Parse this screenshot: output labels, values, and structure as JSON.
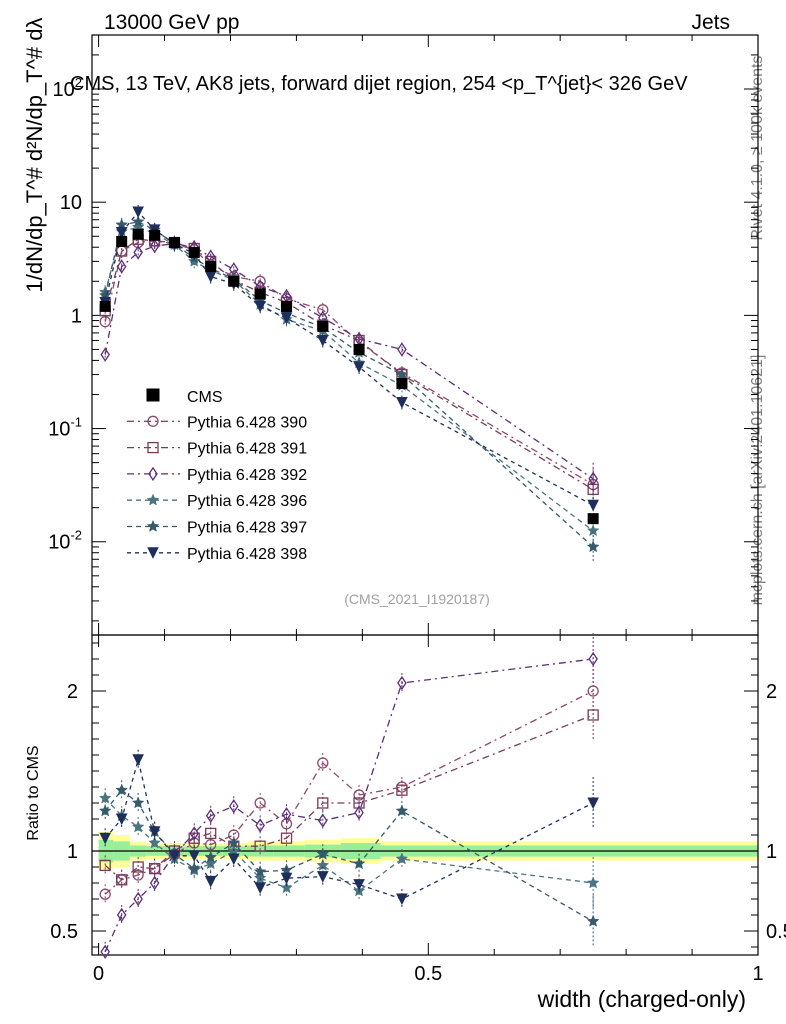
{
  "header": {
    "energy_label": "13000 GeV pp",
    "process_label": "Jets"
  },
  "side_labels": {
    "rivet": "Rivet 4.1.0, ≥ 100k events",
    "mcplots": "mcplots.cern.ch [arXiv:2401.10621]"
  },
  "chart_data": {
    "type": "line",
    "title": "CMS, 13 TeV, AK8 jets, forward dijet region, 254 <p_T^{jet}< 326 GeV",
    "analysis_id": "(CMS_2021_I1920187)",
    "xlabel": "width (charged-only)",
    "ylabel": "1/dN/dp_T^# d²N/dp_T^# dλ",
    "ratio_ylabel": "Ratio to CMS",
    "xlim": [
      -0.01,
      1.0
    ],
    "ylim": [
      0.0015,
      300
    ],
    "yscale": "log",
    "ratio_ylim": [
      0.35,
      2.35
    ],
    "x_ticks": [
      "0",
      "0.5",
      "1"
    ],
    "y_ticks": [
      "10^-2",
      "10^-1",
      "1",
      "10",
      "10^2"
    ],
    "ratio_ticks": [
      "0.5",
      "1",
      "2"
    ],
    "x": [
      0.01,
      0.035,
      0.06,
      0.085,
      0.115,
      0.145,
      0.17,
      0.205,
      0.245,
      0.285,
      0.34,
      0.395,
      0.46,
      0.75
    ],
    "data": {
      "name": "CMS",
      "values": [
        1.2,
        4.5,
        5.2,
        5.1,
        4.4,
        3.6,
        2.7,
        2.0,
        1.55,
        1.2,
        0.8,
        0.5,
        0.25,
        0.016
      ]
    },
    "band": {
      "yellow_rel": [
        0.12,
        0.1,
        0.06,
        0.05,
        0.05,
        0.05,
        0.05,
        0.05,
        0.06,
        0.06,
        0.07,
        0.08,
        0.06,
        0.06
      ],
      "green_rel": [
        0.07,
        0.06,
        0.035,
        0.03,
        0.03,
        0.03,
        0.03,
        0.03,
        0.035,
        0.035,
        0.04,
        0.05,
        0.035,
        0.035
      ]
    },
    "series": [
      {
        "name": "Pythia 6.428 390",
        "color": "#8b4a6b",
        "marker": "circle",
        "dash": "7,4,2,4",
        "values": [
          0.88,
          3.7,
          4.4,
          4.55,
          4.3,
          3.8,
          2.8,
          2.2,
          2.0,
          1.4,
          1.12,
          0.58,
          0.31,
          0.032
        ],
        "ratio": [
          0.73,
          0.82,
          0.85,
          0.89,
          0.98,
          1.05,
          1.04,
          1.1,
          1.3,
          1.17,
          1.55,
          1.35,
          1.4,
          2.0
        ]
      },
      {
        "name": "Pythia 6.428 391",
        "color": "#7a3b58",
        "marker": "square",
        "dash": "7,4,2,4",
        "values": [
          1.1,
          3.7,
          4.7,
          4.55,
          4.4,
          3.9,
          3.0,
          2.05,
          1.6,
          1.3,
          0.82,
          0.6,
          0.3,
          0.029
        ],
        "ratio": [
          0.91,
          0.82,
          0.9,
          0.89,
          1.0,
          1.08,
          1.11,
          1.03,
          1.03,
          1.08,
          1.3,
          1.3,
          1.38,
          1.85
        ]
      },
      {
        "name": "Pythia 6.428 392",
        "color": "#5c2d7a",
        "marker": "diamond",
        "dash": "7,4,2,4",
        "values": [
          0.45,
          2.7,
          3.6,
          4.1,
          4.3,
          4.0,
          3.3,
          2.55,
          1.8,
          1.48,
          0.95,
          0.62,
          0.5,
          0.036
        ],
        "ratio": [
          0.37,
          0.6,
          0.7,
          0.8,
          0.98,
          1.11,
          1.22,
          1.28,
          1.16,
          1.23,
          1.19,
          1.24,
          2.05,
          2.2
        ]
      },
      {
        "name": "Pythia 6.428 396",
        "color": "#4a7580",
        "marker": "star",
        "dash": "5,4",
        "values": [
          1.6,
          5.5,
          6.0,
          5.3,
          4.2,
          3.0,
          2.5,
          2.05,
          1.25,
          0.92,
          0.73,
          0.38,
          0.24,
          0.0125
        ],
        "ratio": [
          1.33,
          1.22,
          1.15,
          1.05,
          0.95,
          0.88,
          0.92,
          1.0,
          0.83,
          0.77,
          0.91,
          0.75,
          0.95,
          0.8
        ]
      },
      {
        "name": "Pythia 6.428 397",
        "color": "#365a6b",
        "marker": "star",
        "dash": "5,4",
        "values": [
          1.5,
          6.3,
          6.7,
          5.7,
          4.3,
          3.2,
          2.6,
          2.1,
          1.35,
          1.05,
          0.78,
          0.47,
          0.3,
          0.009
        ],
        "ratio": [
          1.25,
          1.38,
          1.3,
          1.12,
          0.98,
          0.89,
          0.96,
          1.05,
          0.87,
          0.88,
          0.98,
          0.92,
          1.25,
          0.56
        ]
      },
      {
        "name": "Pythia 6.428 398",
        "color": "#1e2f5c",
        "marker": "triangle-down",
        "dash": "4,4",
        "values": [
          1.3,
          5.4,
          8.2,
          5.7,
          4.3,
          3.5,
          2.2,
          1.9,
          1.2,
          0.95,
          0.6,
          0.35,
          0.17,
          0.021
        ],
        "ratio": [
          1.08,
          1.2,
          1.57,
          1.12,
          0.97,
          0.97,
          0.81,
          0.95,
          0.77,
          0.83,
          0.84,
          0.79,
          0.7,
          1.3
        ]
      }
    ]
  }
}
